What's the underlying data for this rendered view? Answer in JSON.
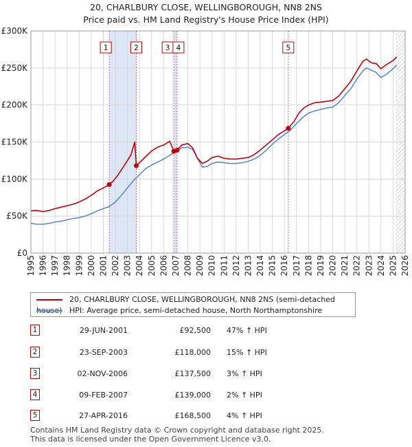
{
  "header": {
    "title_line1": "20, CHARLBURY CLOSE, WELLINGBOROUGH, NN8 2NS",
    "title_line2": "Price paid vs. HM Land Registry's House Price Index (HPI)"
  },
  "colors": {
    "property": "#c0000a",
    "hpi": "#5b8bcc",
    "shade": "#dce6f5",
    "hatch": "#bbbbbb",
    "grid": "#d8d8d8",
    "marker_dash": "#e06070"
  },
  "legend": {
    "property_label": "20, CHARLBURY CLOSE, WELLINGBOROUGH, NN8 2NS (semi-detached house)",
    "hpi_label": "HPI: Average price, semi-detached house, North Northamptonshire"
  },
  "sales": [
    {
      "num": "1",
      "date": "29-JUN-2001",
      "price": "£92,500",
      "hpi": "47% ↑ HPI"
    },
    {
      "num": "2",
      "date": "23-SEP-2003",
      "price": "£118,000",
      "hpi": "15% ↑ HPI"
    },
    {
      "num": "3",
      "date": "02-NOV-2006",
      "price": "£137,500",
      "hpi": "3% ↑ HPI"
    },
    {
      "num": "4",
      "date": "09-FEB-2007",
      "price": "£139,000",
      "hpi": "2% ↑ HPI"
    },
    {
      "num": "5",
      "date": "27-APR-2016",
      "price": "£168,500",
      "hpi": "4% ↑ HPI"
    }
  ],
  "footer": {
    "line1": "Contains HM Land Registry data © Crown copyright and database right 2025.",
    "line2": "This data is licensed under the Open Government Licence v3.0."
  },
  "chart_data": {
    "type": "line",
    "title": "20, CHARLBURY CLOSE, WELLINGBOROUGH, NN8 2NS",
    "subtitle": "Price paid vs. HM Land Registry's House Price Index (HPI)",
    "xlabel": "",
    "ylabel": "",
    "xlim": [
      1995,
      2026
    ],
    "ylim": [
      0,
      300000
    ],
    "grid": true,
    "legend_position": "below",
    "x_ticks": [
      "1995",
      "1996",
      "1997",
      "1998",
      "1999",
      "2000",
      "2001",
      "2002",
      "2003",
      "2004",
      "2005",
      "2006",
      "2007",
      "2008",
      "2009",
      "2010",
      "2011",
      "2012",
      "2013",
      "2014",
      "2015",
      "2016",
      "2017",
      "2018",
      "2019",
      "2020",
      "2021",
      "2022",
      "2023",
      "2024",
      "2025",
      "2026"
    ],
    "y_ticks": [
      {
        "value": 0,
        "label": "£0"
      },
      {
        "value": 50000,
        "label": "£50K"
      },
      {
        "value": 100000,
        "label": "£100K"
      },
      {
        "value": 150000,
        "label": "£150K"
      },
      {
        "value": 200000,
        "label": "£200K"
      },
      {
        "value": 250000,
        "label": "£250K"
      },
      {
        "value": 300000,
        "label": "£300K"
      }
    ],
    "hatched_from": 2025.2,
    "series": [
      {
        "name": "20, CHARLBURY CLOSE, WELLINGBOROUGH, NN8 2NS (semi-detached house)",
        "color": "#c0000a",
        "points": [
          [
            1995.0,
            57000
          ],
          [
            1995.5,
            57500
          ],
          [
            1996.0,
            56000
          ],
          [
            1996.5,
            57500
          ],
          [
            1997.0,
            60000
          ],
          [
            1997.5,
            62000
          ],
          [
            1998.0,
            64000
          ],
          [
            1998.5,
            66000
          ],
          [
            1999.0,
            69000
          ],
          [
            1999.5,
            73000
          ],
          [
            2000.0,
            78000
          ],
          [
            2000.5,
            84000
          ],
          [
            2001.0,
            88000
          ],
          [
            2001.49,
            92500
          ],
          [
            2001.8,
            97000
          ],
          [
            2002.2,
            105000
          ],
          [
            2002.6,
            115000
          ],
          [
            2003.0,
            125000
          ],
          [
            2003.3,
            133000
          ],
          [
            2003.6,
            150000
          ],
          [
            2003.73,
            118000
          ],
          [
            2004.0,
            122000
          ],
          [
            2004.5,
            130000
          ],
          [
            2005.0,
            138000
          ],
          [
            2005.5,
            143000
          ],
          [
            2006.0,
            146000
          ],
          [
            2006.5,
            151000
          ],
          [
            2006.84,
            137500
          ],
          [
            2007.11,
            139000
          ],
          [
            2007.5,
            146000
          ],
          [
            2008.0,
            148000
          ],
          [
            2008.4,
            142000
          ],
          [
            2008.8,
            128000
          ],
          [
            2009.2,
            121000
          ],
          [
            2009.6,
            124000
          ],
          [
            2010.0,
            129000
          ],
          [
            2010.5,
            131000
          ],
          [
            2011.0,
            128000
          ],
          [
            2011.5,
            127000
          ],
          [
            2012.0,
            127000
          ],
          [
            2012.5,
            128000
          ],
          [
            2013.0,
            129000
          ],
          [
            2013.5,
            133000
          ],
          [
            2014.0,
            139000
          ],
          [
            2014.5,
            146000
          ],
          [
            2015.0,
            153000
          ],
          [
            2015.5,
            160000
          ],
          [
            2016.0,
            165000
          ],
          [
            2016.32,
            168500
          ],
          [
            2016.8,
            178000
          ],
          [
            2017.2,
            189000
          ],
          [
            2017.6,
            196000
          ],
          [
            2018.0,
            200000
          ],
          [
            2018.5,
            203000
          ],
          [
            2019.0,
            204000
          ],
          [
            2019.5,
            205000
          ],
          [
            2020.0,
            206000
          ],
          [
            2020.5,
            212000
          ],
          [
            2021.0,
            222000
          ],
          [
            2021.5,
            232000
          ],
          [
            2022.0,
            246000
          ],
          [
            2022.5,
            259000
          ],
          [
            2022.8,
            262000
          ],
          [
            2023.2,
            257000
          ],
          [
            2023.6,
            256000
          ],
          [
            2024.0,
            249000
          ],
          [
            2024.5,
            255000
          ],
          [
            2025.0,
            260000
          ],
          [
            2025.3,
            265000
          ]
        ]
      },
      {
        "name": "HPI: Average price, semi-detached house, North Northamptonshire",
        "color": "#5b8bcc",
        "points": [
          [
            1995.0,
            40000
          ],
          [
            1995.5,
            39000
          ],
          [
            1996.0,
            39000
          ],
          [
            1996.5,
            40000
          ],
          [
            1997.0,
            42000
          ],
          [
            1997.5,
            43000
          ],
          [
            1998.0,
            45000
          ],
          [
            1998.5,
            46500
          ],
          [
            1999.0,
            48000
          ],
          [
            1999.5,
            50000
          ],
          [
            2000.0,
            53000
          ],
          [
            2000.5,
            57000
          ],
          [
            2001.0,
            60000
          ],
          [
            2001.5,
            63000
          ],
          [
            2002.0,
            69000
          ],
          [
            2002.5,
            78000
          ],
          [
            2003.0,
            88000
          ],
          [
            2003.5,
            98000
          ],
          [
            2004.0,
            106000
          ],
          [
            2004.5,
            114000
          ],
          [
            2005.0,
            119000
          ],
          [
            2005.5,
            123000
          ],
          [
            2006.0,
            127000
          ],
          [
            2006.5,
            132000
          ],
          [
            2007.0,
            137000
          ],
          [
            2007.5,
            142000
          ],
          [
            2008.0,
            143000
          ],
          [
            2008.4,
            140000
          ],
          [
            2008.8,
            128000
          ],
          [
            2009.2,
            116000
          ],
          [
            2009.6,
            117000
          ],
          [
            2010.0,
            121000
          ],
          [
            2010.5,
            123000
          ],
          [
            2011.0,
            122000
          ],
          [
            2011.5,
            121000
          ],
          [
            2012.0,
            121000
          ],
          [
            2012.5,
            122000
          ],
          [
            2013.0,
            124000
          ],
          [
            2013.5,
            127000
          ],
          [
            2014.0,
            132000
          ],
          [
            2014.5,
            139000
          ],
          [
            2015.0,
            147000
          ],
          [
            2015.5,
            154000
          ],
          [
            2016.0,
            160000
          ],
          [
            2016.5,
            166000
          ],
          [
            2017.0,
            175000
          ],
          [
            2017.5,
            183000
          ],
          [
            2018.0,
            189000
          ],
          [
            2018.5,
            192000
          ],
          [
            2019.0,
            194000
          ],
          [
            2019.5,
            196000
          ],
          [
            2020.0,
            197000
          ],
          [
            2020.5,
            203000
          ],
          [
            2021.0,
            213000
          ],
          [
            2021.5,
            222000
          ],
          [
            2022.0,
            235000
          ],
          [
            2022.5,
            246000
          ],
          [
            2022.8,
            250000
          ],
          [
            2023.2,
            247000
          ],
          [
            2023.6,
            244000
          ],
          [
            2024.0,
            237000
          ],
          [
            2024.5,
            242000
          ],
          [
            2025.0,
            249000
          ],
          [
            2025.3,
            254000
          ]
        ]
      }
    ],
    "sale_points": [
      {
        "label": "1",
        "x": 2001.49,
        "y": 92500
      },
      {
        "label": "2",
        "x": 2003.73,
        "y": 118000
      },
      {
        "label": "3",
        "x": 2006.84,
        "y": 137500
      },
      {
        "label": "4",
        "x": 2007.11,
        "y": 139000
      },
      {
        "label": "5",
        "x": 2016.32,
        "y": 168500
      }
    ]
  }
}
